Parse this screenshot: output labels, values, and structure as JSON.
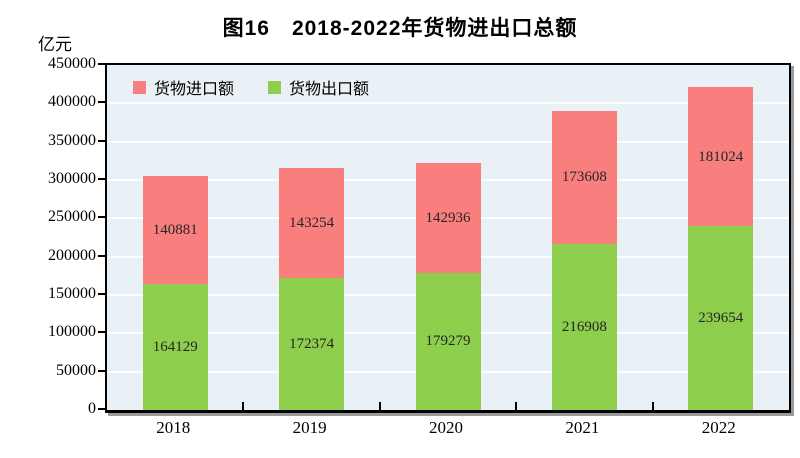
{
  "title": "图16　2018-2022年货物进出口总额",
  "y_unit": "亿元",
  "legend": {
    "import_label": "货物进口额",
    "export_label": "货物出口额"
  },
  "colors": {
    "import": "#F97E7E",
    "export": "#8DCE4C",
    "plot_bg": "#E9F1F6",
    "grid": "#FFFFFF",
    "axis": "#000000"
  },
  "chart_data": {
    "type": "bar",
    "stacked": true,
    "title": "图16　2018-2022年货物进出口总额",
    "xlabel": "",
    "ylabel": "亿元",
    "categories": [
      "2018",
      "2019",
      "2020",
      "2021",
      "2022"
    ],
    "series": [
      {
        "name": "货物出口额",
        "color_key": "export",
        "values": [
          164129,
          172374,
          179279,
          216908,
          239654
        ]
      },
      {
        "name": "货物进口额",
        "color_key": "import",
        "values": [
          140881,
          143254,
          142936,
          173608,
          181024
        ]
      }
    ],
    "ylim": [
      0,
      450000
    ],
    "ytick_step": 50000,
    "grid": true,
    "legend_position": "top-left-inside"
  }
}
